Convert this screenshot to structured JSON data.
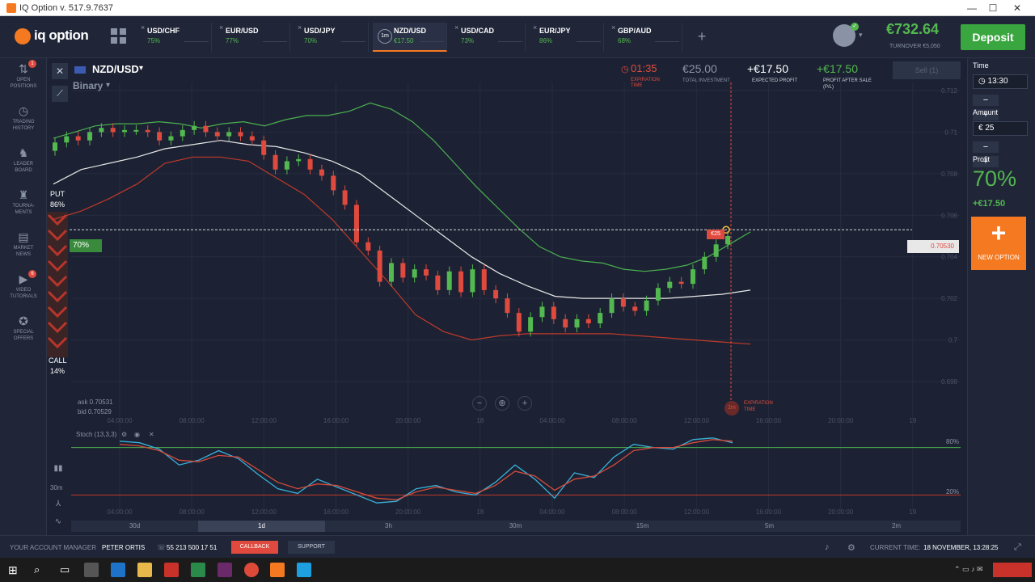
{
  "window": {
    "title": "IQ Option v. 517.9.7637",
    "minimize": "—",
    "maximize": "☐",
    "close": "✕"
  },
  "brand": {
    "name": "iq option"
  },
  "asset_tabs": [
    {
      "name": "USD/CHF",
      "payout": "75%"
    },
    {
      "name": "EUR/USD",
      "payout": "77%"
    },
    {
      "name": "USD/JPY",
      "payout": "70%"
    },
    {
      "name": "NZD/USD",
      "payout": "€17.50",
      "badge": "1m",
      "active": true
    },
    {
      "name": "USD/CAD",
      "payout": "73%"
    },
    {
      "name": "EUR/JPY",
      "payout": "86%"
    },
    {
      "name": "GBP/AUD",
      "payout": "68%"
    }
  ],
  "account": {
    "balance": "€732.64",
    "turnover": "TURNOVER €5,050",
    "deposit_label": "Deposit"
  },
  "sidebar": [
    {
      "icon": "⇅",
      "label1": "OPEN",
      "label2": "POSITIONS",
      "badge": "1"
    },
    {
      "icon": "◷",
      "label1": "TRADING",
      "label2": "HISTORY"
    },
    {
      "icon": "♞",
      "label1": "LEADER",
      "label2": "BOARD"
    },
    {
      "icon": "♜",
      "label1": "TOURNA-",
      "label2": "MENTS"
    },
    {
      "icon": "▤",
      "label1": "MARKET",
      "label2": "NEWS"
    },
    {
      "icon": "▶",
      "label1": "VIDEO",
      "label2": "TUTORIALS",
      "badge": "6"
    },
    {
      "icon": "✪",
      "label1": "SPECIAL",
      "label2": "OFFERS"
    }
  ],
  "chart_header": {
    "asset": "NZD/USD",
    "mode": "Binary",
    "expiration": "01:35",
    "expiration_label1": "EXPIRATION",
    "expiration_label2": "TIME",
    "investment": "€25.00",
    "investment_label": "TOTAL INVESTMENT",
    "expected": "+€17.50",
    "expected_label": "EXPECTED PROFIT",
    "after_sale": "+€17.50",
    "after_sale_label1": "PROFIT AFTER SALE",
    "after_sale_label2": "(P/L)",
    "sell_label": "Sell (1)"
  },
  "sentiment": {
    "put_label": "PUT",
    "put_pct": "86%",
    "call_label": "CALL",
    "call_pct": "14%"
  },
  "price_tag": "0.70530",
  "level_badge": "70%",
  "bet_badge": "€25",
  "expiry_tag": "1m",
  "expiry_text1": "EXPIRATION",
  "expiry_text2": "TIME",
  "ask": "ask 0.70531",
  "bid": "bid 0.70529",
  "stoch_label": "Stoch (13,3,3)",
  "stoch_levels": [
    "80%",
    "20%"
  ],
  "zoom_controls": [
    "−",
    "⊕",
    "+"
  ],
  "candle_interval": "30m",
  "time_ranges": [
    "30d",
    "1d",
    "3h",
    "30m",
    "15m",
    "5m",
    "2m"
  ],
  "active_range": "1d",
  "chart_data": {
    "type": "candlestick",
    "y_ticks": [
      "0.712",
      "0.71",
      "0.708",
      "0.706",
      "0.704",
      "0.702",
      "0.7",
      "0.698"
    ],
    "x_ticks": [
      "04:00:00",
      "08:00:00",
      "12:00:00",
      "16:00:00",
      "20:00:00",
      "18",
      "04:00:00",
      "08:00:00",
      "12:00:00",
      "16:00:00",
      "20:00:00",
      "19"
    ],
    "ylim": [
      0.698,
      0.712
    ],
    "candles": [
      [
        0.7091,
        0.7095
      ],
      [
        0.7095,
        0.7098
      ],
      [
        0.7098,
        0.7096
      ],
      [
        0.7096,
        0.71
      ],
      [
        0.71,
        0.7102
      ],
      [
        0.7102,
        0.71
      ],
      [
        0.71,
        0.7101
      ],
      [
        0.7101,
        0.7101
      ],
      [
        0.7101,
        0.71
      ],
      [
        0.71,
        0.7096
      ],
      [
        0.7096,
        0.7098
      ],
      [
        0.7098,
        0.7101
      ],
      [
        0.7101,
        0.7103
      ],
      [
        0.7103,
        0.71
      ],
      [
        0.71,
        0.7098
      ],
      [
        0.7098,
        0.71
      ],
      [
        0.71,
        0.7098
      ],
      [
        0.7098,
        0.7096
      ],
      [
        0.7096,
        0.7089
      ],
      [
        0.7089,
        0.7082
      ],
      [
        0.7082,
        0.7086
      ],
      [
        0.7086,
        0.7087
      ],
      [
        0.7087,
        0.7082
      ],
      [
        0.7082,
        0.7079
      ],
      [
        0.7079,
        0.7072
      ],
      [
        0.7072,
        0.7065
      ],
      [
        0.7065,
        0.7047
      ],
      [
        0.7047,
        0.7043
      ],
      [
        0.7043,
        0.7028
      ],
      [
        0.7028,
        0.7037
      ],
      [
        0.7037,
        0.703
      ],
      [
        0.703,
        0.7034
      ],
      [
        0.7034,
        0.7031
      ],
      [
        0.7031,
        0.7024
      ],
      [
        0.7024,
        0.7033
      ],
      [
        0.7033,
        0.7023
      ],
      [
        0.7023,
        0.7034
      ],
      [
        0.7034,
        0.7024
      ],
      [
        0.7024,
        0.702
      ],
      [
        0.702,
        0.7013
      ],
      [
        0.7013,
        0.7004
      ],
      [
        0.7004,
        0.7011
      ],
      [
        0.7011,
        0.7016
      ],
      [
        0.7016,
        0.701
      ],
      [
        0.701,
        0.7006
      ],
      [
        0.7006,
        0.701
      ],
      [
        0.701,
        0.7008
      ],
      [
        0.7008,
        0.7013
      ],
      [
        0.7013,
        0.702
      ],
      [
        0.702,
        0.7016
      ],
      [
        0.7016,
        0.7014
      ],
      [
        0.7014,
        0.7019
      ],
      [
        0.7019,
        0.7025
      ],
      [
        0.7025,
        0.7028
      ],
      [
        0.7028,
        0.7027
      ],
      [
        0.7027,
        0.7034
      ],
      [
        0.7034,
        0.704
      ],
      [
        0.704,
        0.7046
      ],
      [
        0.7046,
        0.705
      ]
    ],
    "upper_band": [
      0.7097,
      0.71,
      0.7103,
      0.7104,
      0.7104,
      0.7105,
      0.7104,
      0.7102,
      0.7104,
      0.7105,
      0.7103,
      0.7106,
      0.7108,
      0.7108,
      0.711,
      0.7114,
      0.7111,
      0.7105,
      0.7096,
      0.7085,
      0.7074,
      0.7064,
      0.7054,
      0.7045,
      0.704,
      0.7038,
      0.7037,
      0.7034,
      0.7033,
      0.7034,
      0.7036,
      0.704,
      0.7046,
      0.7052
    ],
    "middle_band": [
      0.7075,
      0.7082,
      0.7085,
      0.7088,
      0.7092,
      0.7094,
      0.7096,
      0.7094,
      0.7093,
      0.709,
      0.7086,
      0.708,
      0.707,
      0.706,
      0.705,
      0.704,
      0.7032,
      0.7026,
      0.7021,
      0.702,
      0.702,
      0.702,
      0.702,
      0.7021,
      0.7022,
      0.7024
    ],
    "lower_band": [
      0.7058,
      0.7062,
      0.7068,
      0.7075,
      0.7085,
      0.7088,
      0.7088,
      0.7086,
      0.7078,
      0.707,
      0.7058,
      0.7043,
      0.7028,
      0.7012,
      0.7004,
      0.7,
      0.7002,
      0.7003,
      0.7003,
      0.7003,
      0.7003,
      0.7002,
      0.7001,
      0.7,
      0.6999,
      0.6998
    ],
    "stoch_k": [
      88,
      86,
      78,
      58,
      64,
      76,
      66,
      46,
      28,
      22,
      40,
      30,
      20,
      10,
      12,
      28,
      32,
      24,
      20,
      36,
      58,
      40,
      16,
      48,
      42,
      68,
      84,
      80,
      78,
      90,
      92,
      86
    ],
    "stoch_d": [
      84,
      82,
      76,
      64,
      62,
      70,
      68,
      52,
      36,
      28,
      34,
      32,
      24,
      16,
      14,
      24,
      30,
      26,
      22,
      32,
      50,
      44,
      26,
      40,
      44,
      58,
      76,
      80,
      80,
      86,
      90,
      88
    ]
  },
  "bottom": {
    "manager_label": "YOUR ACCOUNT MANAGER",
    "manager_name": "PETER ORTIS",
    "phone": "55 213 500 17 51",
    "callback": "CALLBACK",
    "support": "SUPPORT",
    "current_time_label": "CURRENT TIME:",
    "current_time": "18 NOVEMBER, 13:28:25"
  },
  "right_panel": {
    "time_label": "Time",
    "time_value": "13:30",
    "amount_label": "Amount",
    "amount_value": "€  25",
    "profit_label": "Profit",
    "profit_pct": "70%",
    "profit_amount": "+€17.50",
    "new_option": "NEW OPTION",
    "minus": "−",
    "plus": "+"
  },
  "colors": {
    "accent": "#f47920",
    "green": "#53b84f",
    "red": "#e04a3e",
    "background": "#1c2233"
  }
}
